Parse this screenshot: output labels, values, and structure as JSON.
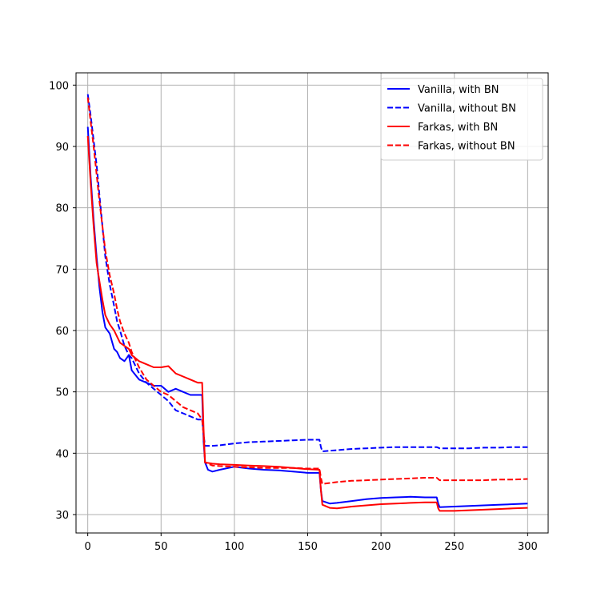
{
  "chart_data": {
    "type": "line",
    "title": "",
    "xlabel": "",
    "ylabel": "",
    "xlim": [
      -8,
      314
    ],
    "ylim": [
      27,
      102
    ],
    "x_ticks": [
      0,
      50,
      100,
      150,
      200,
      250,
      300
    ],
    "y_ticks": [
      30,
      40,
      50,
      60,
      70,
      80,
      90,
      100
    ],
    "x_tick_labels": [
      "0",
      "50",
      "100",
      "150",
      "200",
      "250",
      "300"
    ],
    "y_tick_labels": [
      "30",
      "40",
      "50",
      "60",
      "70",
      "80",
      "90",
      "100"
    ],
    "grid": true,
    "legend_position": "top-right",
    "series": [
      {
        "name": "Vanilla, with BN",
        "color": "#0000ff",
        "dash": "solid",
        "x": [
          0,
          2,
          4,
          6,
          8,
          10,
          12,
          15,
          18,
          20,
          22,
          25,
          28,
          30,
          35,
          40,
          45,
          50,
          55,
          60,
          65,
          70,
          75,
          78,
          79,
          80,
          82,
          85,
          90,
          100,
          110,
          120,
          130,
          140,
          150,
          158,
          159,
          160,
          165,
          170,
          180,
          190,
          200,
          210,
          220,
          230,
          238,
          239,
          240,
          250,
          260,
          270,
          280,
          290,
          300
        ],
        "y": [
          93.2,
          85,
          78,
          72,
          67,
          63,
          60.5,
          59.5,
          57,
          56.5,
          55.5,
          55,
          56,
          53.5,
          52,
          51.5,
          51,
          51,
          50,
          50.5,
          50,
          49.5,
          49.5,
          49.5,
          42,
          38.5,
          37.3,
          37,
          37.3,
          37.8,
          37.5,
          37.3,
          37.2,
          37,
          36.8,
          36.8,
          34,
          32.2,
          31.8,
          31.9,
          32.2,
          32.5,
          32.7,
          32.8,
          32.9,
          32.8,
          32.8,
          31.8,
          31.2,
          31.3,
          31.4,
          31.5,
          31.6,
          31.7,
          31.8
        ]
      },
      {
        "name": "Vanilla, without BN",
        "color": "#0000ff",
        "dash": "dashed",
        "x": [
          0,
          2,
          4,
          6,
          8,
          10,
          12,
          15,
          18,
          20,
          22,
          25,
          28,
          30,
          35,
          40,
          45,
          50,
          55,
          60,
          65,
          70,
          75,
          78,
          79,
          80,
          85,
          90,
          100,
          110,
          120,
          130,
          140,
          150,
          158,
          159,
          160,
          170,
          180,
          190,
          200,
          210,
          220,
          230,
          238,
          240,
          250,
          260,
          270,
          280,
          290,
          300
        ],
        "y": [
          98.5,
          95,
          91,
          87,
          82,
          77,
          72,
          67.5,
          64,
          61.5,
          60,
          57.5,
          56,
          55.5,
          53,
          51.5,
          50.5,
          49.5,
          48.5,
          47,
          46.5,
          46,
          45.5,
          45.5,
          43,
          41.2,
          41.2,
          41.3,
          41.6,
          41.8,
          41.9,
          42,
          42.1,
          42.2,
          42.2,
          41,
          40.3,
          40.5,
          40.7,
          40.8,
          40.9,
          41,
          41,
          41,
          41,
          40.8,
          40.8,
          40.8,
          40.9,
          40.9,
          41,
          41
        ]
      },
      {
        "name": "Farkas, with BN",
        "color": "#ff0000",
        "dash": "solid",
        "x": [
          0,
          2,
          4,
          6,
          8,
          10,
          12,
          15,
          18,
          20,
          22,
          25,
          28,
          30,
          35,
          40,
          45,
          50,
          55,
          60,
          65,
          70,
          75,
          78,
          79,
          80,
          85,
          90,
          100,
          110,
          120,
          130,
          140,
          150,
          158,
          159,
          160,
          165,
          170,
          180,
          190,
          200,
          210,
          220,
          230,
          238,
          239,
          240,
          250,
          260,
          270,
          280,
          290,
          300
        ],
        "y": [
          91.7,
          84,
          77,
          71,
          68,
          65,
          62.5,
          61,
          60,
          59,
          58,
          57.5,
          57,
          56,
          55,
          54.5,
          54,
          54,
          54.2,
          53,
          52.5,
          52,
          51.5,
          51.5,
          44,
          38.5,
          38.3,
          38.2,
          38.1,
          38,
          37.9,
          37.8,
          37.6,
          37.4,
          37.3,
          34,
          31.6,
          31.1,
          31,
          31.3,
          31.5,
          31.7,
          31.8,
          31.9,
          32,
          32,
          31,
          30.6,
          30.6,
          30.7,
          30.8,
          30.9,
          31,
          31.1
        ]
      },
      {
        "name": "Farkas, without BN",
        "color": "#ff0000",
        "dash": "dashed",
        "x": [
          0,
          2,
          4,
          6,
          8,
          10,
          12,
          15,
          18,
          20,
          22,
          25,
          28,
          30,
          35,
          40,
          45,
          50,
          55,
          60,
          65,
          70,
          75,
          78,
          79,
          80,
          85,
          90,
          100,
          110,
          120,
          130,
          140,
          150,
          158,
          159,
          160,
          170,
          180,
          190,
          200,
          210,
          220,
          230,
          238,
          240,
          250,
          260,
          270,
          280,
          290,
          300
        ],
        "y": [
          98,
          94,
          90,
          85.5,
          81,
          77,
          73,
          69,
          66,
          63.5,
          61.5,
          59.5,
          58,
          56.5,
          54,
          52,
          51,
          50,
          49.5,
          48.5,
          47.5,
          47,
          46.5,
          45.5,
          43,
          38.5,
          38,
          37.9,
          37.8,
          37.7,
          37.6,
          37.6,
          37.6,
          37.5,
          37.5,
          36,
          35,
          35.3,
          35.5,
          35.6,
          35.7,
          35.8,
          35.9,
          36,
          36,
          35.6,
          35.6,
          35.6,
          35.6,
          35.7,
          35.7,
          35.8
        ]
      }
    ]
  }
}
